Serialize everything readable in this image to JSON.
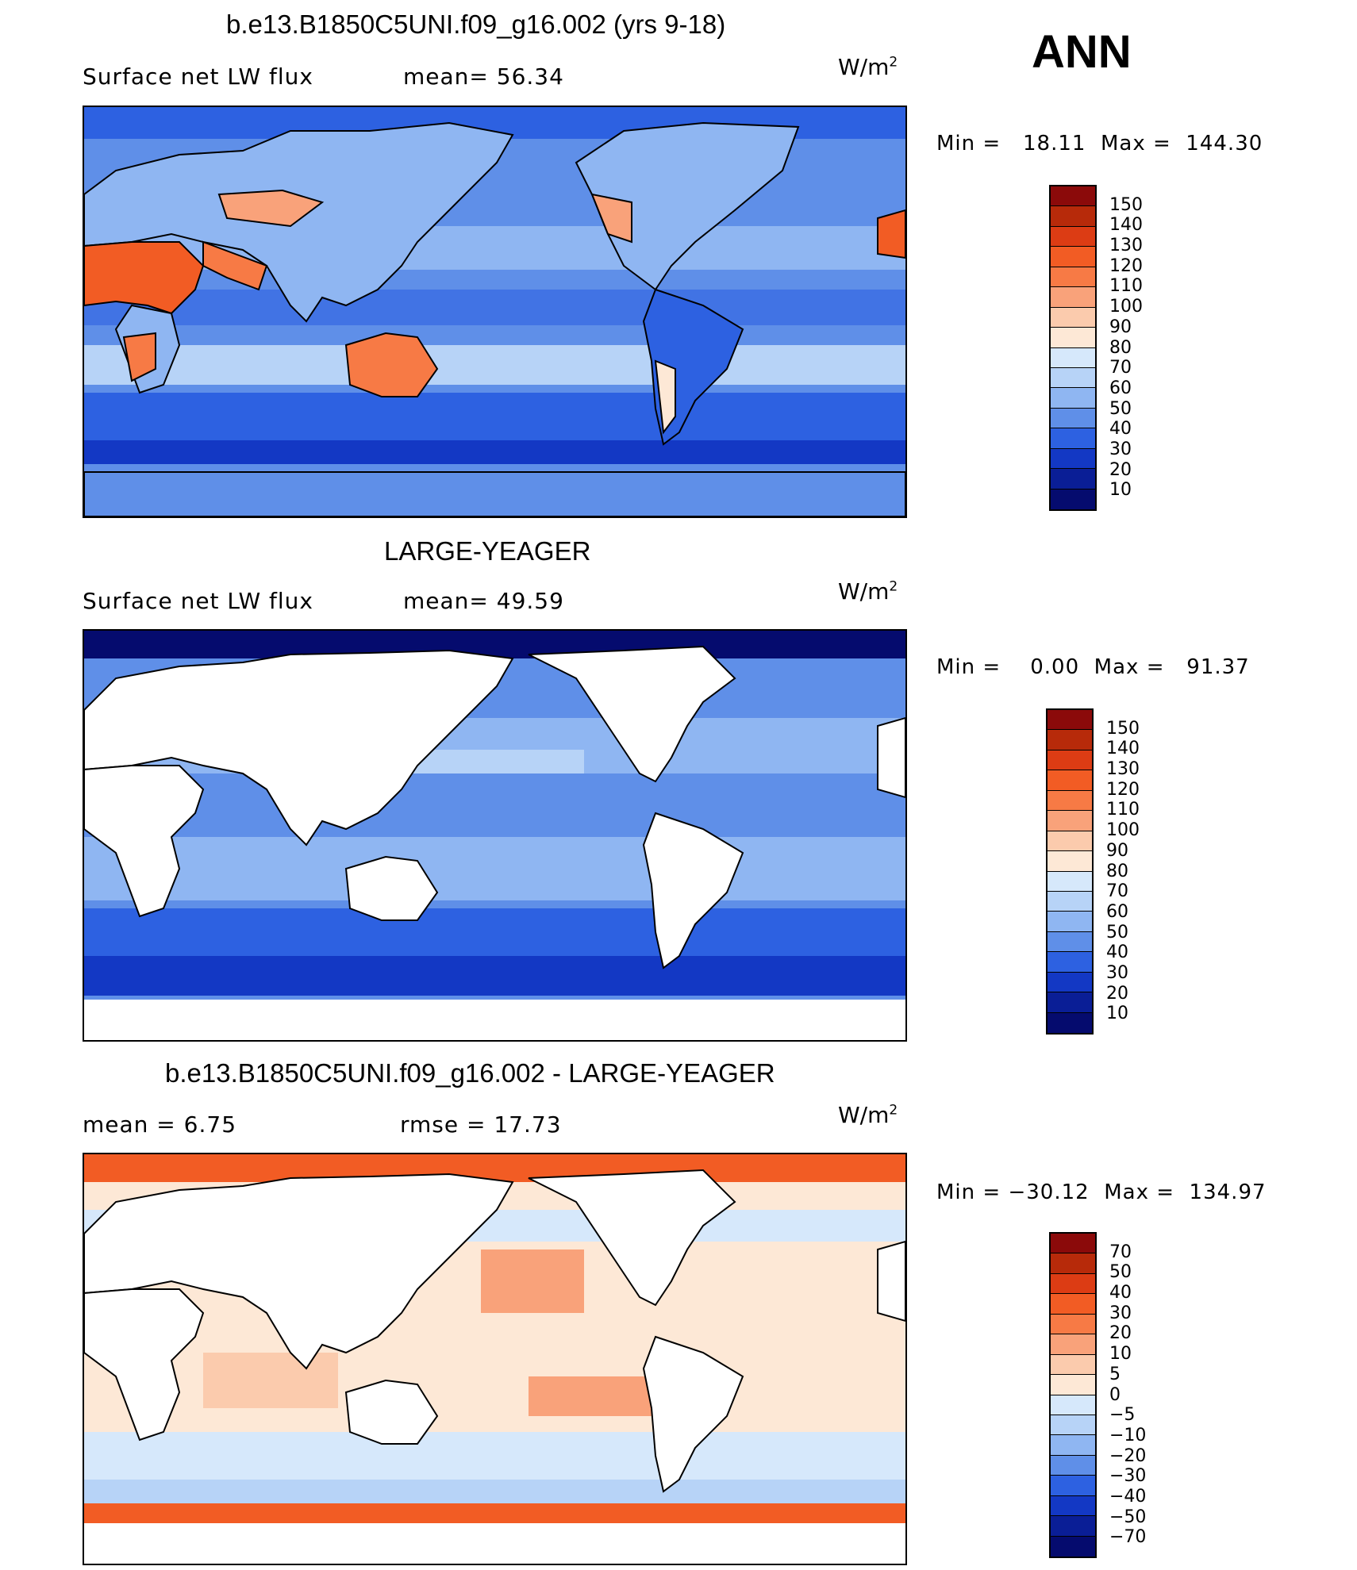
{
  "season": "ANN",
  "units": "W/m",
  "units_exp": "2",
  "panels": [
    {
      "title": "b.e13.B1850C5UNI.f09_g16.002 (yrs 9-18)",
      "left_label": "Surface net LW flux",
      "right_label": "mean=   56.34",
      "min_label": "Min  =",
      "min_value": "18.11",
      "max_label": "Max  =",
      "max_value": "144.30",
      "levels": [
        "150",
        "140",
        "130",
        "120",
        "110",
        "100",
        "90",
        "80",
        "70",
        "60",
        "50",
        "40",
        "30",
        "20",
        "10"
      ],
      "colors": [
        "#8b0a0a",
        "#b72a0a",
        "#dc3c14",
        "#f25c24",
        "#f77a45",
        "#f9a27a",
        "#fbcbad",
        "#fde8d6",
        "#d6e8fb",
        "#b7d3f7",
        "#8fb6f2",
        "#5f8fe8",
        "#2d61e1",
        "#1338c4",
        "#0a1e96",
        "#050b6e"
      ],
      "map_kind": "model"
    },
    {
      "title": "LARGE-YEAGER",
      "left_label": "Surface net LW flux",
      "right_label": "mean=   49.59",
      "min_label": "Min  =",
      "min_value": "0.00",
      "max_label": "Max  =",
      "max_value": "91.37",
      "levels": [
        "150",
        "140",
        "130",
        "120",
        "110",
        "100",
        "90",
        "80",
        "70",
        "60",
        "50",
        "40",
        "30",
        "20",
        "10"
      ],
      "colors": [
        "#8b0a0a",
        "#b72a0a",
        "#dc3c14",
        "#f25c24",
        "#f77a45",
        "#f9a27a",
        "#fbcbad",
        "#fde8d6",
        "#d6e8fb",
        "#b7d3f7",
        "#8fb6f2",
        "#5f8fe8",
        "#2d61e1",
        "#1338c4",
        "#0a1e96",
        "#050b6e"
      ],
      "map_kind": "obs"
    },
    {
      "title": "b.e13.B1850C5UNI.f09_g16.002 - LARGE-YEAGER",
      "left_label": "mean  =      6.75",
      "right_label": "rmse  =     17.73",
      "min_label": "Min  =",
      "min_value": "−30.12",
      "max_label": "Max  =",
      "max_value": "134.97",
      "levels": [
        "70",
        "50",
        "40",
        "30",
        "20",
        "10",
        "5",
        "0",
        "−5",
        "−10",
        "−20",
        "−30",
        "−40",
        "−50",
        "−70"
      ],
      "colors": [
        "#8b0a0a",
        "#b72a0a",
        "#dc3c14",
        "#f25c24",
        "#f77a45",
        "#f9a27a",
        "#fbcbad",
        "#fde8d6",
        "#d6e8fb",
        "#b7d3f7",
        "#8fb6f2",
        "#5f8fe8",
        "#2d61e1",
        "#1338c4",
        "#0a1e96",
        "#050b6e"
      ],
      "map_kind": "diff"
    }
  ]
}
